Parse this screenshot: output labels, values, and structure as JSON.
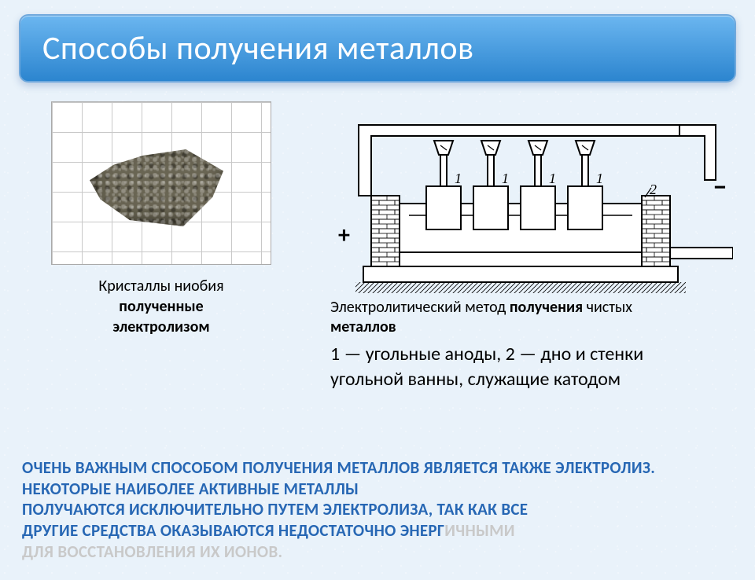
{
  "title": {
    "text": "Способы получения металлов",
    "bg_gradient_top": "#6bb6f0",
    "bg_gradient_bottom": "#2c85cf",
    "text_color": "#ffffff"
  },
  "left": {
    "caption_line1": "Кристаллы ниобия",
    "caption_line2_prefix": "полученные",
    "caption_line3": "электролизом"
  },
  "right": {
    "diagram": {
      "anode_label": "1",
      "cathode_label": "2",
      "plus_label": "+",
      "minus_label": "−",
      "brick_color": "#ffffff",
      "outline_color": "#000000"
    },
    "caption1_prefix": "Электролитический метод ",
    "caption1_bold1": "получения",
    "caption1_mid": " чистых",
    "caption1_bold2": "металлов",
    "legend_line1": "1 — угольные аноды, 2 — дно и стенки",
    "legend_line2": "угольной ванны, служащие катодом"
  },
  "bottom": {
    "text_parts": [
      {
        "t": "Очень важным способом получения металлов является ",
        "c": "#2767b4"
      },
      {
        "t": "также электролиз. Некоторые наиболее активные метал",
        "c": "#2767b4"
      },
      {
        "t": "лы\nполучаются исключительно путем электролиза, так как все\nдругие средства оказываются недостаточно энерг",
        "c": "#2767b4"
      },
      {
        "t": "ичными\nдля восстановления их ионов.",
        "c": "#c9c9c9"
      }
    ]
  },
  "colors": {
    "page_bg": "#e9f2fa",
    "body_text": "#000000",
    "accent_blue": "#2767b4",
    "faded_gray": "#c9c9c9"
  }
}
